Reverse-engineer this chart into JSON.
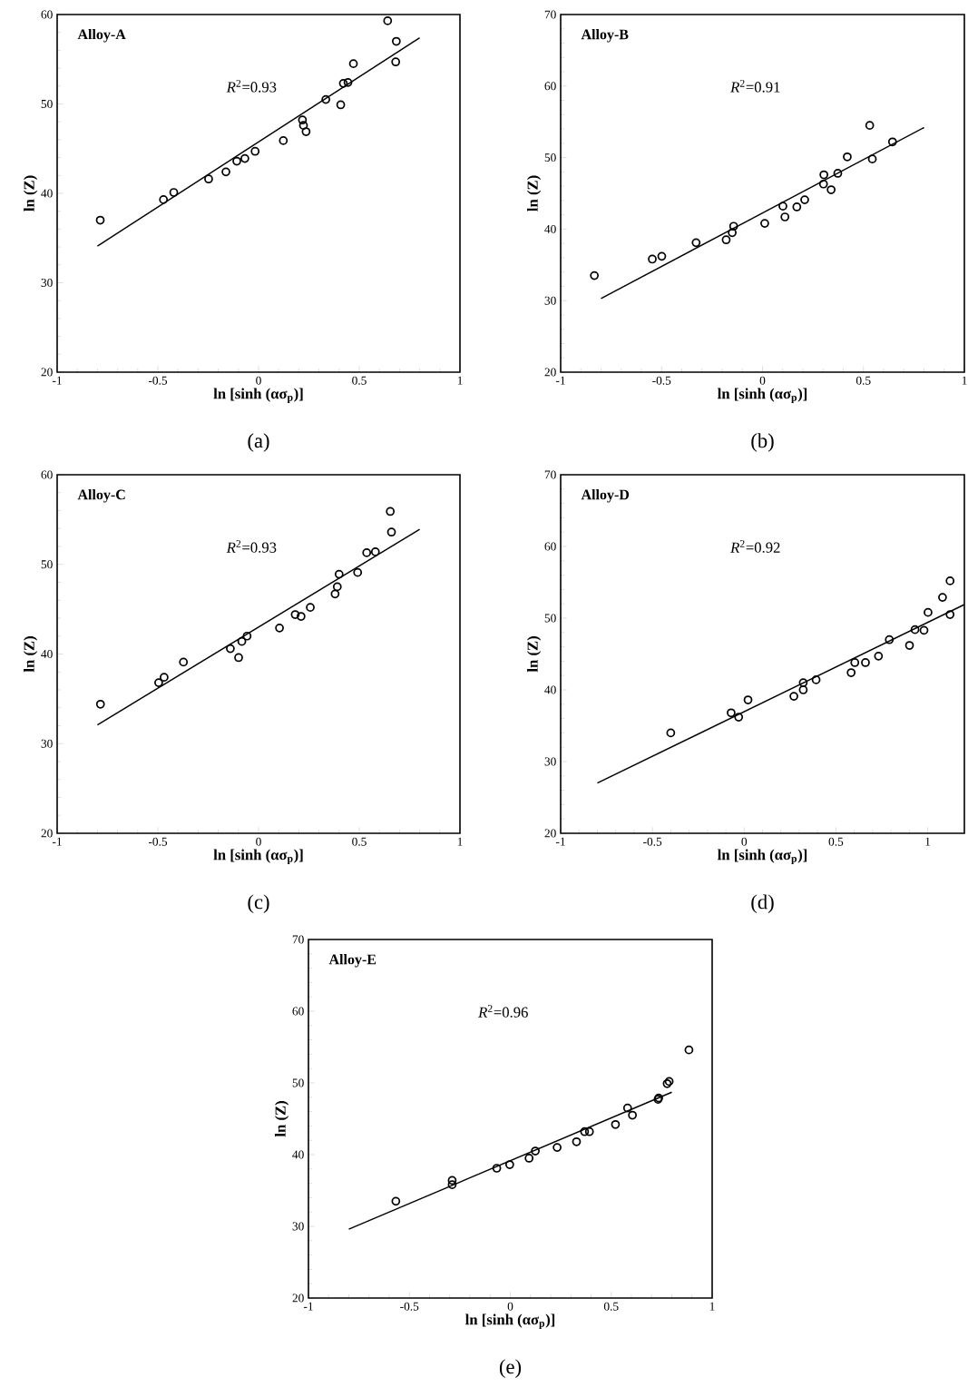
{
  "chart_data": [
    {
      "type": "scatter",
      "xlabel": "ln [sinh (ασ$_{p}$)]",
      "ylabel": "ln (Z)",
      "xlim": [
        -1,
        1
      ],
      "ylim": [
        20,
        60
      ],
      "xticks": [
        -1,
        -0.5,
        0,
        0.5,
        1
      ],
      "yticks": [
        20,
        30,
        40,
        50,
        60
      ],
      "annotations": [
        "Alloy-A",
        "*R*$^{2}$=0.93",
        "(a)"
      ],
      "series": [
        {
          "type": "scatter",
          "marker": "circle",
          "color": "#000000",
          "x": [
            -0.786,
            -0.472,
            -0.421,
            -0.248,
            -0.162,
            -0.108,
            -0.068,
            -0.017,
            0.123,
            0.218,
            0.223,
            0.236,
            0.334,
            0.408,
            0.421,
            0.444,
            0.471,
            0.641,
            0.684,
            0.681
          ],
          "values": [
            37.0,
            39.3,
            40.1,
            41.6,
            42.4,
            43.6,
            43.9,
            44.7,
            45.9,
            48.2,
            47.6,
            46.9,
            50.5,
            49.9,
            52.3,
            52.4,
            54.5,
            59.3,
            57.0,
            54.7
          ]
        },
        {
          "type": "line",
          "marker": "none",
          "line_style": "solid",
          "color": "#000000",
          "x": [
            -0.8,
            0.8
          ],
          "values": [
            34.1,
            57.4
          ]
        }
      ]
    },
    {
      "type": "scatter",
      "xlabel": "ln [sinh (ασ$_{p}$)]",
      "ylabel": "ln (Z)",
      "xlim": [
        -1,
        1
      ],
      "ylim": [
        20,
        70
      ],
      "xticks": [
        -1,
        -0.5,
        0,
        0.5,
        1
      ],
      "yticks": [
        20,
        30,
        40,
        50,
        60,
        70
      ],
      "annotations": [
        "Alloy-B",
        "*R*$^{2}$=0.91",
        "(b)"
      ],
      "series": [
        {
          "type": "scatter",
          "marker": "circle",
          "color": "#000000",
          "x": [
            -0.833,
            -0.546,
            -0.499,
            -0.329,
            -0.18,
            -0.15,
            -0.143,
            0.011,
            0.101,
            0.111,
            0.17,
            0.209,
            0.302,
            0.304,
            0.34,
            0.373,
            0.42,
            0.531,
            0.544,
            0.644
          ],
          "values": [
            33.5,
            35.8,
            36.2,
            38.1,
            38.5,
            39.5,
            40.4,
            40.8,
            43.2,
            41.7,
            43.1,
            44.1,
            46.3,
            47.6,
            45.5,
            47.8,
            50.1,
            54.5,
            49.8,
            52.2
          ]
        },
        {
          "type": "line",
          "marker": "none",
          "line_style": "solid",
          "color": "#000000",
          "x": [
            -0.8,
            0.8
          ],
          "values": [
            30.3,
            54.2
          ]
        }
      ]
    },
    {
      "type": "scatter",
      "xlabel": "ln [sinh (ασ$_{p}$)]",
      "ylabel": "ln (Z)",
      "xlim": [
        -1,
        1
      ],
      "ylim": [
        20,
        60
      ],
      "xticks": [
        -1,
        -0.5,
        0,
        0.5,
        1
      ],
      "yticks": [
        20,
        30,
        40,
        50,
        60
      ],
      "annotations": [
        "Alloy-C",
        "*R*$^{2}$=0.93",
        "(c)"
      ],
      "series": [
        {
          "type": "scatter",
          "marker": "circle",
          "color": "#000000",
          "x": [
            -0.785,
            -0.496,
            -0.469,
            -0.373,
            -0.14,
            -0.099,
            -0.083,
            -0.057,
            0.104,
            0.182,
            0.211,
            0.257,
            0.38,
            0.391,
            0.4,
            0.492,
            0.537,
            0.58,
            0.654,
            0.66
          ],
          "values": [
            34.4,
            36.8,
            37.4,
            39.1,
            40.6,
            39.6,
            41.4,
            42.0,
            42.9,
            44.4,
            44.2,
            45.2,
            46.7,
            47.5,
            48.9,
            49.1,
            51.3,
            51.4,
            55.9,
            53.6
          ]
        },
        {
          "type": "line",
          "marker": "none",
          "line_style": "solid",
          "color": "#000000",
          "x": [
            -0.8,
            0.8
          ],
          "values": [
            32.1,
            53.9
          ]
        }
      ]
    },
    {
      "type": "scatter",
      "xlabel": "ln [sinh (ασ$_{p}$)]",
      "ylabel": "ln (Z)",
      "xlim": [
        -1,
        1.2
      ],
      "ylim": [
        20,
        70
      ],
      "xticks": [
        -1,
        -0.5,
        0,
        0.5,
        1
      ],
      "yticks": [
        20,
        30,
        40,
        50,
        60,
        70
      ],
      "annotations": [
        "Alloy-D",
        "*R*$^{2}$=0.92",
        "(d)"
      ],
      "series": [
        {
          "type": "scatter",
          "marker": "circle",
          "color": "#000000",
          "x": [
            -0.4,
            -0.071,
            -0.03,
            0.021,
            0.271,
            0.322,
            0.322,
            0.392,
            0.583,
            0.603,
            0.661,
            0.732,
            0.791,
            0.901,
            0.931,
            0.98,
            1.002,
            1.081,
            1.122,
            1.122
          ],
          "values": [
            34.0,
            36.8,
            36.2,
            38.6,
            39.1,
            40.0,
            41.0,
            41.4,
            42.4,
            43.8,
            43.8,
            44.7,
            47.0,
            46.2,
            48.4,
            48.3,
            50.8,
            52.9,
            55.2,
            50.5
          ]
        },
        {
          "type": "line",
          "marker": "none",
          "line_style": "solid",
          "color": "#000000",
          "x": [
            -0.8,
            1.2
          ],
          "values": [
            27.0,
            51.9
          ]
        }
      ]
    },
    {
      "type": "scatter",
      "xlabel": "ln [sinh (ασ$_{p}$)]",
      "ylabel": "ln (Z)",
      "xlim": [
        -1,
        1
      ],
      "ylim": [
        20,
        70
      ],
      "xticks": [
        -1,
        -0.5,
        0,
        0.5,
        1
      ],
      "yticks": [
        20,
        30,
        40,
        50,
        60,
        70
      ],
      "annotations": [
        "Alloy-E",
        "*R*$^{2}$=0.96",
        "(e)"
      ],
      "series": [
        {
          "type": "scatter",
          "marker": "circle",
          "color": "#000000",
          "x": [
            -0.567,
            -0.288,
            -0.288,
            -0.067,
            -0.003,
            0.093,
            0.124,
            0.232,
            0.328,
            0.368,
            0.392,
            0.521,
            0.581,
            0.605,
            0.732,
            0.735,
            0.777,
            0.787,
            0.885
          ],
          "values": [
            33.5,
            36.4,
            35.8,
            38.1,
            38.6,
            39.5,
            40.5,
            41.0,
            41.8,
            43.2,
            43.2,
            44.2,
            46.5,
            45.5,
            47.7,
            47.9,
            49.9,
            50.2,
            54.6
          ]
        },
        {
          "type": "line",
          "marker": "none",
          "line_style": "solid",
          "color": "#000000",
          "x": [
            -0.8,
            0.8
          ],
          "values": [
            29.6,
            48.7
          ]
        }
      ]
    }
  ]
}
